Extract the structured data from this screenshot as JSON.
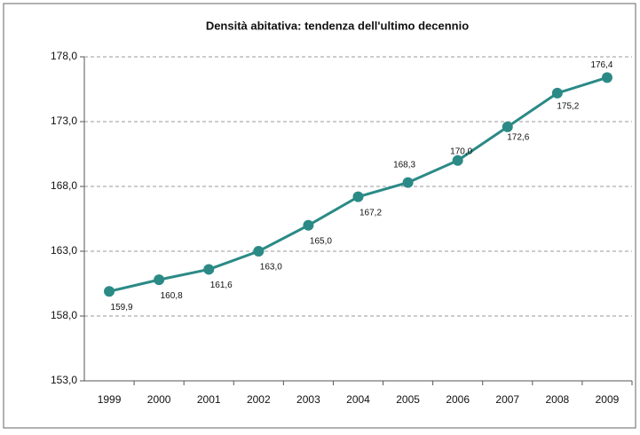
{
  "chart_data": {
    "type": "line",
    "title": "Densità abitativa: tendenza dell'ultimo decennio",
    "categories": [
      "1999",
      "2000",
      "2001",
      "2002",
      "2003",
      "2004",
      "2005",
      "2006",
      "2007",
      "2008",
      "2009"
    ],
    "series": [
      {
        "color": "#2b8a86",
        "values": [
          159.9,
          160.8,
          161.6,
          163.0,
          165.0,
          167.2,
          168.3,
          170.0,
          172.6,
          175.2,
          176.4
        ],
        "value_labels": [
          "159,9",
          "160,8",
          "161,6",
          "163,0",
          "165,0",
          "167,2",
          "168,3",
          "170,0",
          "172,6",
          "175,2",
          "176,4"
        ]
      }
    ],
    "ylim": [
      153,
      178
    ],
    "yticks": [
      {
        "value": 153,
        "label": "153,0"
      },
      {
        "value": 158,
        "label": "158,0"
      },
      {
        "value": 163,
        "label": "163,0"
      },
      {
        "value": 168,
        "label": "168,0"
      },
      {
        "value": 173,
        "label": "173,0"
      },
      {
        "value": 178,
        "label": "178,0"
      }
    ],
    "grid": true
  }
}
